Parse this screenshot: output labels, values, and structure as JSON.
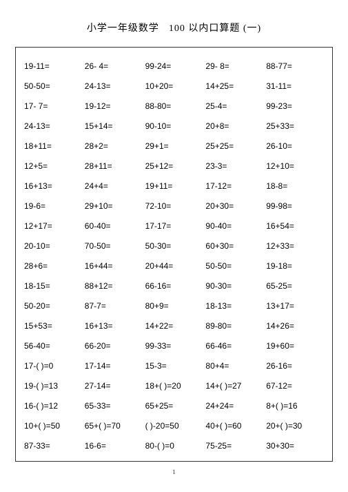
{
  "title_part1": "小学一年级数学",
  "title_part2": "100 以内口算题 (一)",
  "page_number": "1",
  "rows": [
    [
      "19-11=",
      "26- 4=",
      "99-24=",
      "29- 8=",
      "88-77="
    ],
    [
      "50-50=",
      "24-13=",
      "10+20=",
      "14+25=",
      "31-11="
    ],
    [
      "17- 7=",
      "19-12=",
      "88-80=",
      "25-4=",
      "99-23="
    ],
    [
      "24-13=",
      "15+14=",
      "90-10=",
      "20+8=",
      "25+33="
    ],
    [
      "18+11=",
      "28+2=",
      "29+1=",
      "25+25=",
      "26-10="
    ],
    [
      "12+5=",
      "28+11=",
      "25+12=",
      "23-3=",
      "12+10="
    ],
    [
      "16+13=",
      "24+4=",
      "19+11=",
      "17-12=",
      "18-8="
    ],
    [
      "19-6=",
      "29+10=",
      "72-10=",
      "20+30=",
      "99-98="
    ],
    [
      "12+17=",
      "60-40=",
      "17-17=",
      "90-40=",
      "16+54="
    ],
    [
      "20-10=",
      "70-50=",
      "50-30=",
      "60+30=",
      "12+33="
    ],
    [
      "28+6=",
      "16+44=",
      "20+44=",
      "50-50=",
      "19-18="
    ],
    [
      "18-15=",
      "88+12=",
      "66-16=",
      "90-30=",
      "65-25="
    ],
    [
      "50-20=",
      "87-7=",
      "80+9=",
      "18-13=",
      "13+17="
    ],
    [
      "15+53=",
      "16+13=",
      "14+22=",
      "89-80=",
      "14+26="
    ],
    [
      "56-40=",
      "66-20=",
      "99-33=",
      "66-46=",
      "19+60="
    ],
    [
      "17-(    )=0",
      "17-14=",
      "15-3=",
      "80+4=",
      "26-16="
    ],
    [
      "19-(    )=13",
      "27-14=",
      "18+(    )=20",
      "14+(    )=27",
      "67-12="
    ],
    [
      "16-(    )=12",
      "65-33=",
      "65+25=",
      "24+24=",
      "8+(    )=16"
    ],
    [
      "10+(    )=50",
      "65+(    )=70",
      "(    )-20=50",
      "40+(    )=60",
      "20+(    )=30"
    ],
    [
      " 87-33=",
      "16-6=",
      "80-(    )=0",
      "75-25=",
      "30+30="
    ]
  ]
}
